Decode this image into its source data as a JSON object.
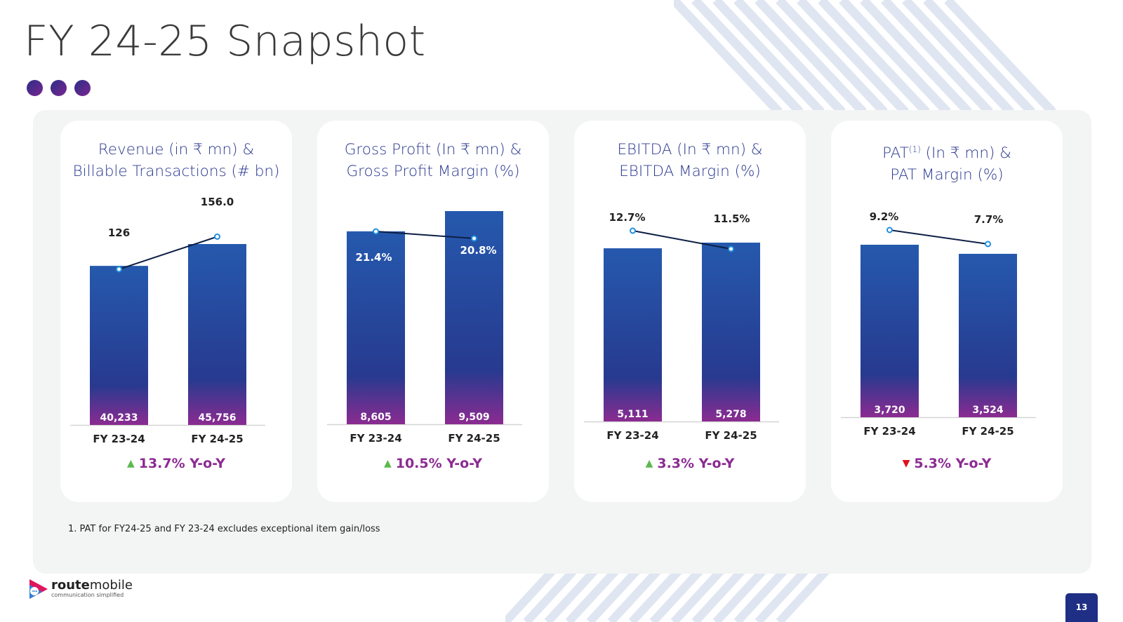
{
  "slide": {
    "title": "FY 24-25 Snapshot",
    "footnote": "1. PAT for FY24-25 and FY 23-24 excludes exceptional item gain/loss",
    "page_number": "13"
  },
  "logo": {
    "name_bold": "route",
    "name_light": "mobile",
    "tagline": "communication simplified"
  },
  "colors": {
    "title": "#2b3990",
    "bar_top": "#2559ad",
    "bar_bottom": "#8b2b91",
    "line": "#0d1f45",
    "yoy_text": "#8b2b91",
    "arrow_up": "#5cb84f",
    "arrow_down": "#e0101c",
    "page_badge": "#1f2f86"
  },
  "chart_data": [
    {
      "type": "bar",
      "title_lines": [
        "Revenue (in ₹ mn) &",
        "Billable Transactions (# bn)"
      ],
      "categories": [
        "FY 23-24",
        "FY 24-25"
      ],
      "series": [
        {
          "values": [
            40233,
            45756
          ],
          "labels": [
            "40,233",
            "45,756"
          ]
        },
        {
          "values": [
            126,
            156.0
          ],
          "labels": [
            "126",
            "156.0"
          ]
        }
      ],
      "yoy": {
        "text": "13.7% Y-o-Y",
        "direction": "up"
      }
    },
    {
      "type": "bar",
      "title_lines": [
        "Gross Profit  (In ₹ mn) &",
        "Gross Profit Margin (%)"
      ],
      "categories": [
        "FY 23-24",
        "FY 24-25"
      ],
      "series": [
        {
          "values": [
            8605,
            9509
          ],
          "labels": [
            "8,605",
            "9,509"
          ]
        },
        {
          "values": [
            21.4,
            20.8
          ],
          "labels": [
            "21.4%",
            "20.8%"
          ]
        }
      ],
      "yoy": {
        "text": "10.5% Y-o-Y",
        "direction": "up"
      }
    },
    {
      "type": "bar",
      "title_lines": [
        "EBITDA (In ₹ mn) &",
        "EBITDA Margin (%)"
      ],
      "categories": [
        "FY 23-24",
        "FY 24-25"
      ],
      "series": [
        {
          "values": [
            5111,
            5278
          ],
          "labels": [
            "5,111",
            "5,278"
          ]
        },
        {
          "values": [
            12.7,
            11.5
          ],
          "labels": [
            "12.7%",
            "11.5%"
          ]
        }
      ],
      "yoy": {
        "text": "3.3% Y-o-Y",
        "direction": "up"
      }
    },
    {
      "type": "bar",
      "title_lines": [
        "PAT",
        "(In ₹ mn) &",
        "PAT Margin (%)"
      ],
      "title_superscript": "(1)",
      "categories": [
        "FY 23-24",
        "FY 24-25"
      ],
      "series": [
        {
          "values": [
            3720,
            3524
          ],
          "labels": [
            "3,720",
            "3,524"
          ]
        },
        {
          "values": [
            9.2,
            7.7
          ],
          "labels": [
            "9.2%",
            "7.7%"
          ]
        }
      ],
      "yoy": {
        "text": "5.3% Y-o-Y",
        "direction": "down"
      }
    }
  ]
}
